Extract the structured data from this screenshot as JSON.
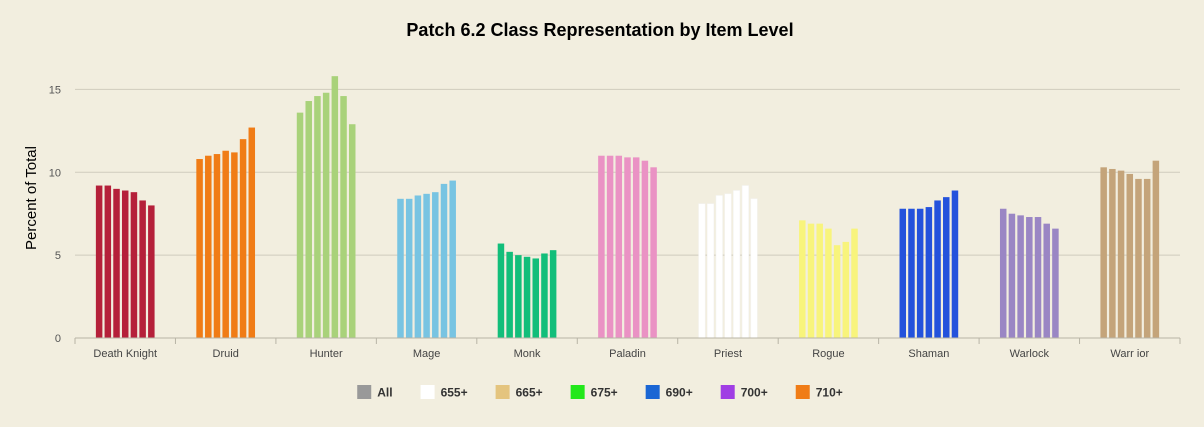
{
  "chart_data": {
    "type": "bar",
    "title": "Patch 6.2 Class Representation by Item Level",
    "ylabel": "Percent of Total",
    "xlabel": "",
    "ylim": [
      0,
      17.5
    ],
    "yticks": [
      0,
      5,
      10,
      15
    ],
    "grid": true,
    "legend_position": "bottom",
    "categories": [
      "Death Knight",
      "Druid",
      "Hunter",
      "Mage",
      "Monk",
      "Paladin",
      "Priest",
      "Rogue",
      "Shaman",
      "Warlock",
      "Warr ior"
    ],
    "category_colors": [
      "#b5203a",
      "#f07c16",
      "#a9d27a",
      "#78c4e2",
      "#12be7a",
      "#ea92c4",
      "#ffffff",
      "#f8f47c",
      "#2452dc",
      "#9a86c4",
      "#c4a47a"
    ],
    "series": [
      {
        "name": "All",
        "color": "#999999",
        "values": [
          9.2,
          10.8,
          13.6,
          8.4,
          5.7,
          11.0,
          8.1,
          7.1,
          7.8,
          7.8,
          10.3
        ]
      },
      {
        "name": "655+",
        "color": "#ffffff",
        "values": [
          9.2,
          11.0,
          14.3,
          8.4,
          5.2,
          11.0,
          8.1,
          6.9,
          7.8,
          7.5,
          10.2
        ]
      },
      {
        "name": "665+",
        "color": "#e4c47e",
        "values": [
          9.0,
          11.1,
          14.6,
          8.6,
          5.0,
          11.0,
          8.6,
          6.9,
          7.8,
          7.4,
          10.1
        ]
      },
      {
        "name": "675+",
        "color": "#22e81a",
        "values": [
          8.9,
          11.3,
          14.8,
          8.7,
          4.9,
          10.9,
          8.7,
          6.6,
          7.9,
          7.3,
          9.9
        ]
      },
      {
        "name": "690+",
        "color": "#1a66d4",
        "values": [
          8.8,
          11.2,
          15.8,
          8.8,
          4.8,
          10.9,
          8.9,
          5.6,
          8.3,
          7.3,
          9.6
        ]
      },
      {
        "name": "700+",
        "color": "#a03ee4",
        "values": [
          8.3,
          12.0,
          14.6,
          9.3,
          5.1,
          10.7,
          9.2,
          5.8,
          8.5,
          6.9,
          9.6
        ]
      },
      {
        "name": "710+",
        "color": "#f07c16",
        "values": [
          8.0,
          12.7,
          12.9,
          9.5,
          5.3,
          10.3,
          8.4,
          6.6,
          8.9,
          6.6,
          10.7
        ]
      }
    ]
  }
}
